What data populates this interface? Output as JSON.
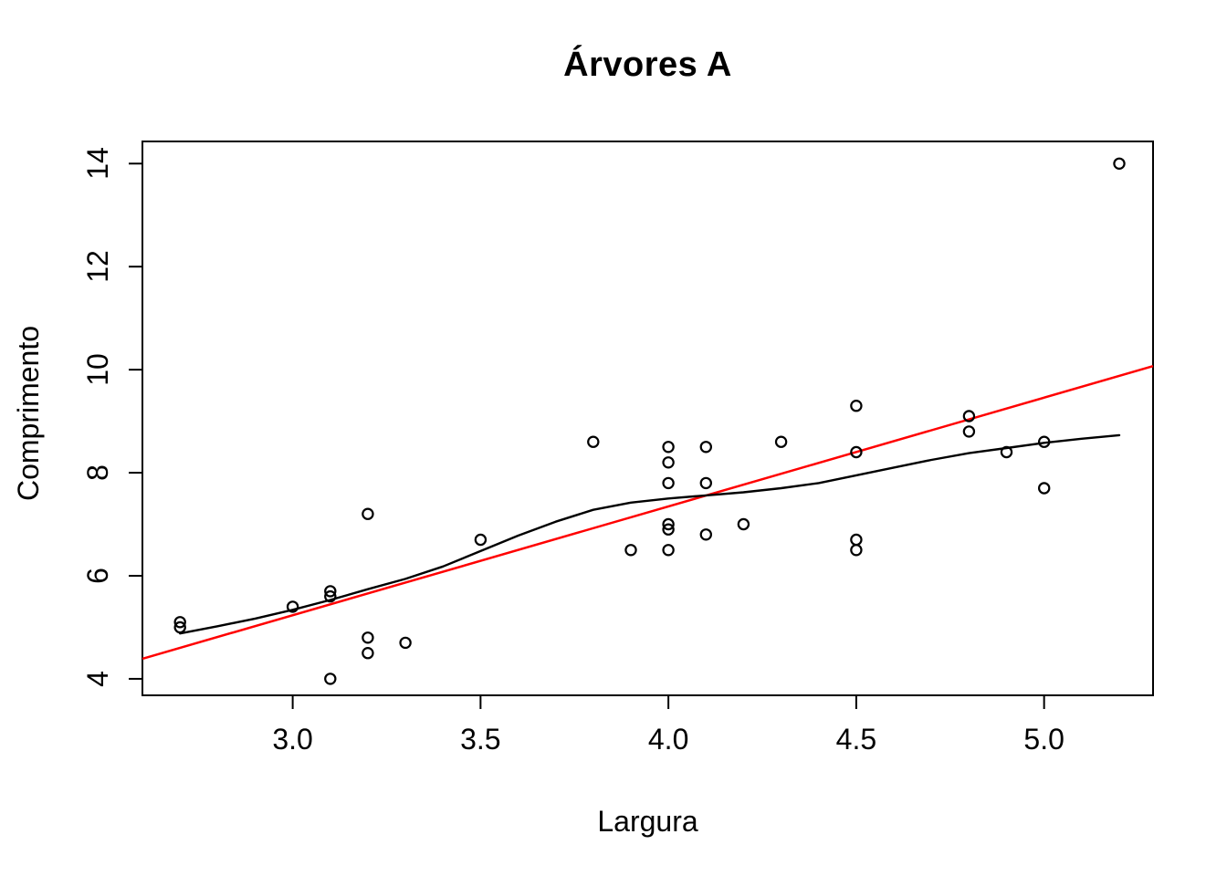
{
  "title": "Árvores A",
  "x_axis": {
    "label": "Largura",
    "tick_labels": [
      "3.0",
      "3.5",
      "4.0",
      "4.5",
      "5.0"
    ]
  },
  "y_axis": {
    "label": "Comprimento",
    "tick_labels": [
      "4",
      "6",
      "8",
      "10",
      "12",
      "14"
    ]
  },
  "chart_data": {
    "type": "scatter",
    "title": "Árvores A",
    "xlabel": "Largura",
    "ylabel": "Comprimento",
    "xlim": [
      2.6,
      5.29
    ],
    "ylim": [
      3.68,
      14.43
    ],
    "x_ticks": [
      3.0,
      3.5,
      4.0,
      4.5,
      5.0
    ],
    "y_ticks": [
      4,
      6,
      8,
      10,
      12,
      14
    ],
    "grid": false,
    "legend": "none",
    "point_style": "open-circle",
    "colors": {
      "points": "#000000",
      "regression_line": "#FF0000",
      "smooth_curve": "#000000",
      "axis": "#000000"
    },
    "points": [
      [
        2.7,
        5.1
      ],
      [
        2.7,
        5.0
      ],
      [
        3.0,
        5.4
      ],
      [
        3.1,
        5.7
      ],
      [
        3.1,
        5.6
      ],
      [
        3.1,
        4.0
      ],
      [
        3.2,
        7.2
      ],
      [
        3.2,
        4.8
      ],
      [
        3.2,
        4.5
      ],
      [
        3.3,
        4.7
      ],
      [
        3.5,
        6.7
      ],
      [
        3.8,
        8.6
      ],
      [
        3.9,
        6.5
      ],
      [
        4.0,
        8.5
      ],
      [
        4.0,
        8.2
      ],
      [
        4.0,
        7.8
      ],
      [
        4.0,
        7.0
      ],
      [
        4.0,
        6.9
      ],
      [
        4.0,
        6.5
      ],
      [
        4.1,
        8.5
      ],
      [
        4.1,
        7.8
      ],
      [
        4.1,
        6.8
      ],
      [
        4.2,
        7.0
      ],
      [
        4.3,
        8.6
      ],
      [
        4.5,
        9.3
      ],
      [
        4.5,
        8.4
      ],
      [
        4.5,
        6.7
      ],
      [
        4.5,
        6.5
      ],
      [
        4.8,
        9.1
      ],
      [
        4.8,
        8.8
      ],
      [
        4.9,
        8.4
      ],
      [
        5.0,
        8.6
      ],
      [
        5.0,
        7.7
      ],
      [
        5.2,
        14.0
      ]
    ],
    "regression_line": {
      "slope": 2.12,
      "intercept": -1.12,
      "x1": 2.6,
      "y1": 4.39,
      "x2": 5.29,
      "y2": 10.07
    },
    "smooth_curve_points": [
      [
        2.7,
        4.88
      ],
      [
        2.8,
        5.02
      ],
      [
        2.9,
        5.17
      ],
      [
        3.0,
        5.34
      ],
      [
        3.1,
        5.53
      ],
      [
        3.2,
        5.74
      ],
      [
        3.3,
        5.94
      ],
      [
        3.4,
        6.18
      ],
      [
        3.5,
        6.48
      ],
      [
        3.6,
        6.78
      ],
      [
        3.7,
        7.05
      ],
      [
        3.8,
        7.28
      ],
      [
        3.9,
        7.42
      ],
      [
        4.0,
        7.5
      ],
      [
        4.1,
        7.56
      ],
      [
        4.2,
        7.62
      ],
      [
        4.3,
        7.7
      ],
      [
        4.4,
        7.8
      ],
      [
        4.5,
        7.95
      ],
      [
        4.6,
        8.1
      ],
      [
        4.7,
        8.25
      ],
      [
        4.8,
        8.38
      ],
      [
        4.9,
        8.48
      ],
      [
        5.0,
        8.58
      ],
      [
        5.1,
        8.66
      ],
      [
        5.2,
        8.73
      ]
    ]
  }
}
